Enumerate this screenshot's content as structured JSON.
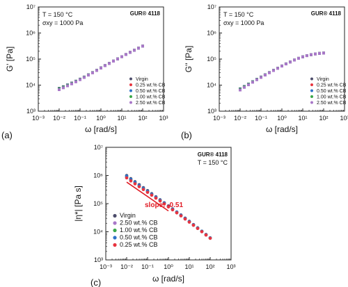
{
  "colors": {
    "virgin": "#4d4d6b",
    "cb025": "#e8343f",
    "cb050": "#2f72c8",
    "cb100": "#3aa84a",
    "cb250": "#a877c8",
    "slope_line": "#e01b24",
    "frame": "#222222",
    "text": "#111111"
  },
  "chart_data": [
    {
      "id": "a",
      "type": "scatter",
      "panel_label": "(a)",
      "title": "",
      "xlabel": "ω [rad/s]",
      "ylabel": "G' [Pa]",
      "xscale": "log",
      "yscale": "log",
      "xlim": [
        0.001,
        1000
      ],
      "ylim": [
        1000,
        10000000
      ],
      "x_ticks": [
        "10⁻³",
        "10⁻²",
        "10⁻¹",
        "10⁰",
        "10¹",
        "10²",
        "10³"
      ],
      "y_ticks": [
        "10³",
        "10⁴",
        "10⁵",
        "10⁶",
        "10⁷"
      ],
      "annotation_line1": "T = 150 °C",
      "annotation_line2": "σxy = 1000 Pa",
      "brand": "GUR® 4118",
      "legend_position": "bottom-right",
      "x": [
        0.01,
        0.0158,
        0.0251,
        0.0398,
        0.0631,
        0.1,
        0.158,
        0.251,
        0.398,
        0.631,
        1,
        1.58,
        2.51,
        3.98,
        6.31,
        10,
        15.8,
        25.1,
        39.8,
        63.1,
        100
      ],
      "series": [
        {
          "name": "Virgin",
          "key": "virgin",
          "values": [
            7500,
            8700,
            10200,
            12000,
            14200,
            17000,
            20500,
            25000,
            30500,
            37500,
            46000,
            56500,
            69000,
            84000,
            102000,
            124000,
            150000,
            181000,
            218000,
            262000,
            314000
          ]
        },
        {
          "name": "0.25 wt.% CB",
          "key": "cb025",
          "values": [
            7000,
            8200,
            9700,
            11500,
            13700,
            16500,
            20000,
            24500,
            30000,
            37000,
            45500,
            56000,
            68500,
            83500,
            101500,
            123500,
            149500,
            180500,
            217500,
            261500,
            313500
          ]
        },
        {
          "name": "0.50 wt.% CB",
          "key": "cb050",
          "values": [
            7200,
            8400,
            9900,
            11700,
            13900,
            16700,
            20200,
            24700,
            30200,
            37200,
            45700,
            56200,
            68700,
            83700,
            101700,
            123700,
            149700,
            180700,
            217700,
            261700,
            313700
          ]
        },
        {
          "name": "1.00 wt.% CB",
          "key": "cb100",
          "values": [
            7100,
            8300,
            9800,
            11600,
            13800,
            16600,
            20100,
            24600,
            30100,
            37100,
            45600,
            56100,
            68600,
            83600,
            101600,
            123600,
            149600,
            180600,
            217600,
            261600,
            313600
          ]
        },
        {
          "name": "2.50 wt.% CB",
          "key": "cb250",
          "values": [
            6700,
            7900,
            9400,
            11200,
            13400,
            16200,
            19700,
            24200,
            29700,
            36700,
            45200,
            55700,
            68200,
            83200,
            101200,
            123200,
            149200,
            180200,
            217200,
            261200,
            313200
          ]
        }
      ]
    },
    {
      "id": "b",
      "type": "scatter",
      "panel_label": "(b)",
      "title": "",
      "xlabel": "ω [rad/s]",
      "ylabel": "G'' [Pa]",
      "xscale": "log",
      "yscale": "log",
      "xlim": [
        0.001,
        1000
      ],
      "ylim": [
        1000,
        10000000
      ],
      "x_ticks": [
        "10⁻³",
        "10⁻²",
        "10⁻¹",
        "10⁰",
        "10¹",
        "10²",
        "10³"
      ],
      "y_ticks": [
        "10³",
        "10⁴",
        "10⁵",
        "10⁶",
        "10⁷"
      ],
      "annotation_line1": "T = 150 °C",
      "annotation_line2": "σxy = 1000 Pa",
      "brand": "GUR® 4118",
      "legend_position": "bottom-right",
      "x": [
        0.01,
        0.0158,
        0.0251,
        0.0398,
        0.0631,
        0.1,
        0.158,
        0.251,
        0.398,
        0.631,
        1,
        1.58,
        2.51,
        3.98,
        6.31,
        10,
        15.8,
        25.1,
        39.8,
        63.1,
        100
      ],
      "series": [
        {
          "name": "Virgin",
          "key": "virgin",
          "values": [
            7200,
            8900,
            11000,
            13600,
            16800,
            20500,
            25000,
            30500,
            37000,
            45000,
            54500,
            65500,
            78000,
            92000,
            107000,
            122000,
            136000,
            148000,
            158000,
            165000,
            170000
          ]
        },
        {
          "name": "0.25 wt.% CB",
          "key": "cb025",
          "values": [
            6800,
            8500,
            10600,
            13200,
            16400,
            20100,
            24600,
            30100,
            36600,
            44600,
            54100,
            65100,
            77600,
            91600,
            106600,
            121600,
            135600,
            147600,
            157600,
            164600,
            169600
          ]
        },
        {
          "name": "0.50 wt.% CB",
          "key": "cb050",
          "values": [
            7000,
            8700,
            10800,
            13400,
            16600,
            20300,
            24800,
            30300,
            36800,
            44800,
            54300,
            65300,
            77800,
            91800,
            106800,
            121800,
            135800,
            147800,
            157800,
            164800,
            169800
          ]
        },
        {
          "name": "1.00 wt.% CB",
          "key": "cb100",
          "values": [
            6900,
            8600,
            10700,
            13300,
            16500,
            20200,
            24700,
            30200,
            36700,
            44700,
            54200,
            65200,
            77700,
            91700,
            106700,
            121700,
            135700,
            147700,
            157700,
            164700,
            169700
          ]
        },
        {
          "name": "2.50 wt.% CB",
          "key": "cb250",
          "values": [
            6500,
            8200,
            10300,
            12900,
            16100,
            19800,
            24300,
            29800,
            36300,
            44300,
            53800,
            64800,
            77300,
            91300,
            106300,
            121300,
            135300,
            147300,
            157300,
            164300,
            169300
          ]
        }
      ]
    },
    {
      "id": "c",
      "type": "scatter",
      "panel_label": "(c)",
      "title": "",
      "xlabel": "ω [rad/s]",
      "ylabel": "|η*| [Pa s]",
      "xscale": "log",
      "yscale": "log",
      "xlim": [
        0.001,
        1000
      ],
      "ylim": [
        1000,
        10000000
      ],
      "x_ticks": [
        "10⁻³",
        "10⁻²",
        "10⁻¹",
        "10⁰",
        "10¹",
        "10²",
        "10³"
      ],
      "y_ticks": [
        "10³",
        "10⁴",
        "10⁵",
        "10⁶",
        "10⁷"
      ],
      "annotation_line1": "GUR® 4118",
      "annotation_line2": "T = 150 °C",
      "legend_position": "bottom-left",
      "slope_label": "slope: -0.51",
      "slope_line": {
        "x": [
          0.01,
          1
        ],
        "y": [
          580000,
          55000
        ]
      },
      "x": [
        0.01,
        0.0158,
        0.0251,
        0.0398,
        0.0631,
        0.1,
        0.158,
        0.251,
        0.398,
        0.631,
        1,
        1.58,
        2.51,
        3.98,
        6.31,
        10,
        15.8,
        25.1,
        39.8,
        63.1,
        100
      ],
      "series": [
        {
          "name": "Virgin",
          "key": "virgin",
          "values": [
            1000000,
            770000,
            600000,
            470000,
            370000,
            290000,
            225000,
            175000,
            137000,
            107000,
            83000,
            65000,
            50500,
            39500,
            30500,
            23500,
            18000,
            13800,
            10500,
            8000,
            6100
          ]
        },
        {
          "name": "2.50 wt.% CB",
          "key": "cb250",
          "values": [
            850000,
            660000,
            520000,
            410000,
            325000,
            258000,
            203000,
            160000,
            126000,
            99000,
            77500,
            61000,
            47500,
            37000,
            28700,
            22200,
            17100,
            13200,
            10100,
            7700,
            5900
          ]
        },
        {
          "name": "1.00 wt.% CB",
          "key": "cb100",
          "values": [
            900000,
            700000,
            550000,
            430000,
            340000,
            268000,
            210000,
            165000,
            130000,
            102000,
            80000,
            62500,
            48800,
            38000,
            29500,
            22800,
            17500,
            13500,
            10300,
            7850,
            6000
          ]
        },
        {
          "name": "0.50 wt.% CB",
          "key": "cb050",
          "values": [
            950000,
            730000,
            570000,
            445000,
            350000,
            275000,
            215000,
            169000,
            133000,
            104000,
            81500,
            63700,
            49600,
            38700,
            30000,
            23100,
            17700,
            13600,
            10400,
            7900,
            6050
          ]
        },
        {
          "name": "0.25 wt.% CB",
          "key": "cb025",
          "values": [
            820000,
            640000,
            505000,
            400000,
            317000,
            252000,
            199000,
            157000,
            124000,
            97500,
            76500,
            60200,
            47000,
            36700,
            28500,
            22000,
            17000,
            13100,
            10050,
            7650,
            5850
          ]
        }
      ]
    }
  ]
}
